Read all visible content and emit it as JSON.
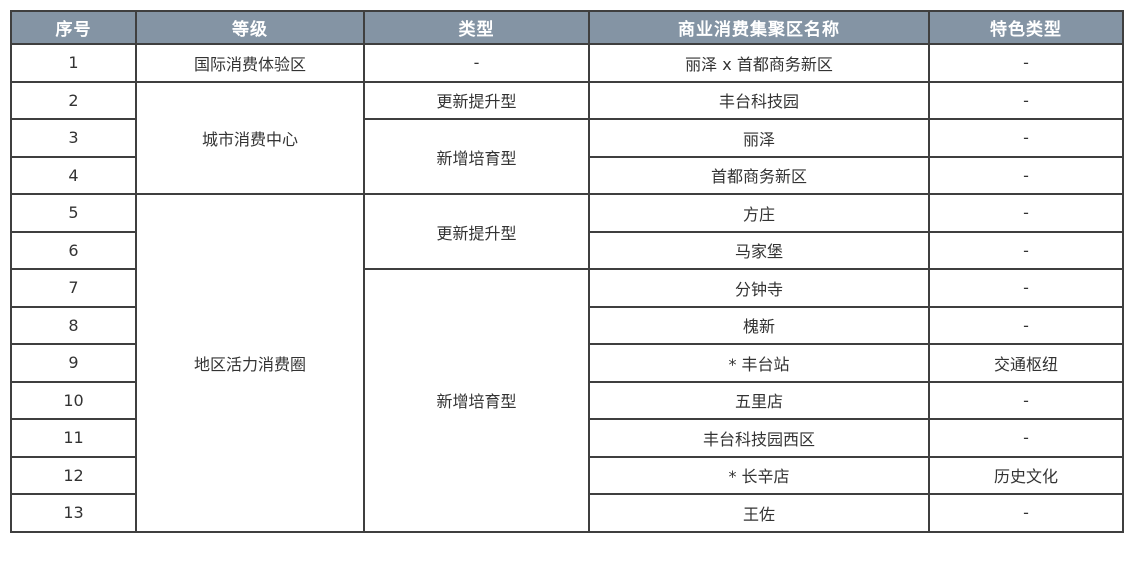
{
  "table": {
    "headers": {
      "no": "序号",
      "level": "等级",
      "type": "类型",
      "name": "商业消费集聚区名称",
      "feature": "特色类型"
    },
    "rows": [
      {
        "no": "1",
        "level": "国际消费体验区",
        "type": "-",
        "name": "丽泽 x 首都商务新区",
        "feature": "-"
      },
      {
        "no": "2",
        "level": "城市消费中心",
        "type": "更新提升型",
        "name": "丰台科技园",
        "feature": "-"
      },
      {
        "no": "3",
        "level": "城市消费中心",
        "type": "新增培育型",
        "name": "丽泽",
        "feature": "-"
      },
      {
        "no": "4",
        "level": "城市消费中心",
        "type": "新增培育型",
        "name": "首都商务新区",
        "feature": "-"
      },
      {
        "no": "5",
        "level": "地区活力消费圈",
        "type": "更新提升型",
        "name": "方庄",
        "feature": "-"
      },
      {
        "no": "6",
        "level": "地区活力消费圈",
        "type": "更新提升型",
        "name": "马家堡",
        "feature": "-"
      },
      {
        "no": "7",
        "level": "地区活力消费圈",
        "type": "新增培育型",
        "name": "分钟寺",
        "feature": "-"
      },
      {
        "no": "8",
        "level": "地区活力消费圈",
        "type": "新增培育型",
        "name": "槐新",
        "feature": "-"
      },
      {
        "no": "9",
        "level": "地区活力消费圈",
        "type": "新增培育型",
        "name": "* 丰台站",
        "feature": "交通枢纽"
      },
      {
        "no": "10",
        "level": "地区活力消费圈",
        "type": "新增培育型",
        "name": "五里店",
        "feature": "-"
      },
      {
        "no": "11",
        "level": "地区活力消费圈",
        "type": "新增培育型",
        "name": "丰台科技园西区",
        "feature": "-"
      },
      {
        "no": "12",
        "level": "地区活力消费圈",
        "type": "新增培育型",
        "name": "* 长辛店",
        "feature": "历史文化"
      },
      {
        "no": "13",
        "level": "地区活力消费圈",
        "type": "新增培育型",
        "name": "王佐",
        "feature": "-"
      }
    ]
  },
  "colors": {
    "header_bg": "#8494a4",
    "header_text": "#ffffff",
    "border": "#3f3f3f",
    "body_text": "#333333"
  }
}
